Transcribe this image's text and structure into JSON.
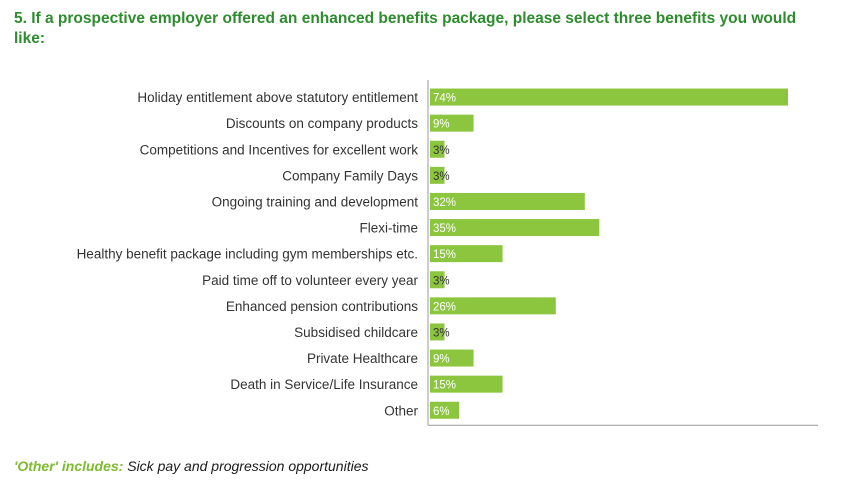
{
  "question": "5. If a prospective employer offered an enhanced benefits package, please select three benefits you would like:",
  "colors": {
    "heading": "#2e8b2e",
    "bar": "#8cc63f",
    "bar_label": "#ffffff",
    "axis": "#9a9a9a",
    "category_text": "#333333",
    "note_label": "#7dbb2f"
  },
  "chart_data": {
    "type": "bar",
    "orientation": "horizontal",
    "categories": [
      "Holiday entitlement above statutory entitlement",
      "Discounts on company products",
      "Competitions and Incentives for excellent work",
      "Company Family Days",
      "Ongoing training and development",
      "Flexi-time",
      "Healthy benefit package including gym memberships etc.",
      "Paid time off to volunteer every year",
      "Enhanced pension contributions",
      "Subsidised childcare",
      "Private Healthcare",
      "Death in Service/Life Insurance",
      "Other"
    ],
    "values": [
      74,
      9,
      3,
      3,
      32,
      35,
      15,
      3,
      26,
      3,
      9,
      15,
      6
    ],
    "value_labels": [
      "74%",
      "9%",
      "3%",
      "3%",
      "32%",
      "35%",
      "15%",
      "3%",
      "26%",
      "3%",
      "9%",
      "15%",
      "6%"
    ],
    "unit": "%",
    "xlim": [
      0,
      80
    ],
    "grid": false,
    "legend": "none"
  },
  "footnote": {
    "label": "'Other' includes:",
    "text": " Sick pay and progression opportunities"
  }
}
